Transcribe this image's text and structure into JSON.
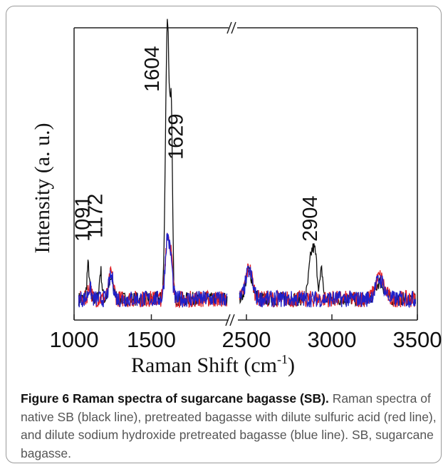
{
  "chart_data": {
    "type": "line",
    "xlabel": "Raman Shift (cm",
    "xlabel_sup": "-1",
    "xlabel_close": ")",
    "ylabel": "Intensity (a. u.)",
    "x_segments": [
      {
        "range": [
          1000,
          2000
        ],
        "ticks": [
          1000,
          1500
        ]
      },
      {
        "range": [
          2450,
          3500
        ],
        "ticks": [
          2500,
          3000,
          3500
        ]
      }
    ],
    "axis_break": "//",
    "y_ticks_shown": false,
    "peak_labels": [
      "1091",
      "1172",
      "1604",
      "1629",
      "2904"
    ],
    "series": [
      {
        "color": "#111111",
        "line_desc": "black line"
      },
      {
        "color": "#e0242a",
        "line_desc": "red line"
      },
      {
        "color": "#2020c8",
        "line_desc": "blue line"
      }
    ]
  },
  "caption": {
    "figure_number": "Figure 6",
    "title": "Raman spectra of sugarcane bagasse (SB).",
    "text": "Raman spectra of native SB (black line), pretreated bagasse with dilute sulfuric acid (red line), and dilute sodium hydroxide pretreated bagasse (blue line). SB, sugarcane bagasse."
  }
}
